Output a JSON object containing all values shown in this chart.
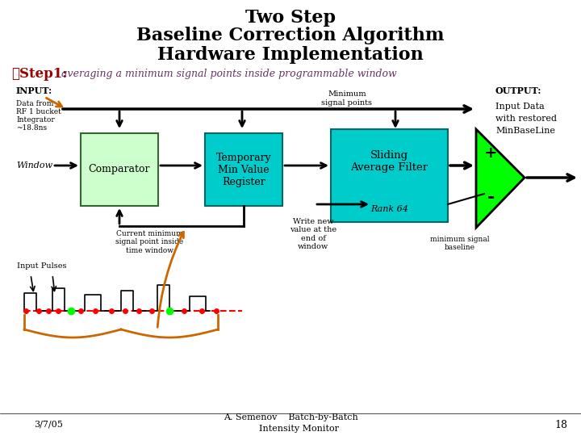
{
  "title_line1": "Two Step",
  "title_line2": "Baseline Correction Algorithm",
  "title_line3": "Hardware Implementation",
  "title_fontsize": 16,
  "step_label": "✓Step1:",
  "step_desc": " averaging a minimum signal points inside programmable window",
  "input_label": "INPUT:",
  "output_label": "OUTPUT:",
  "output_text": "Input Data\nwith restored\nMinBaseLine",
  "data_from_text": "Data from\nRF 1 bucket\nIntegrator\n~18.8ns",
  "window_label": "Window",
  "comparator_label": "Comparator",
  "tmpmin_label": "Temporary\nMin Value\nRegister",
  "sliding_label": "Sliding\nAverage Filter",
  "rank_label": "Rank 64",
  "min_signal_label": "Minimum\nsignal points",
  "write_new_label": "Write new\nvalue at the\nend of\nwindow",
  "current_min_label": "Current minimum\nsignal point inside\ntime window",
  "input_pulses_label": "Input Pulses",
  "min_signal_baseline_label": "minimum signal\nbaseline",
  "date_label": "3/7/05",
  "center_label": "A. Semenov    Batch-by-Batch\n      Intensity Monitor",
  "page_label": "18",
  "bg_color": "#ffffff",
  "comparator_color": "#ccffcc",
  "comparator_border": "#336633",
  "tmpmin_color": "#00cccc",
  "tmpmin_border": "#006666",
  "sliding_color": "#00cccc",
  "sliding_border": "#006666",
  "amplifier_color": "#00ff00",
  "step_color": "#990000",
  "desc_color": "#663366",
  "arrow_color": "#000000",
  "orange_color": "#cc6600"
}
